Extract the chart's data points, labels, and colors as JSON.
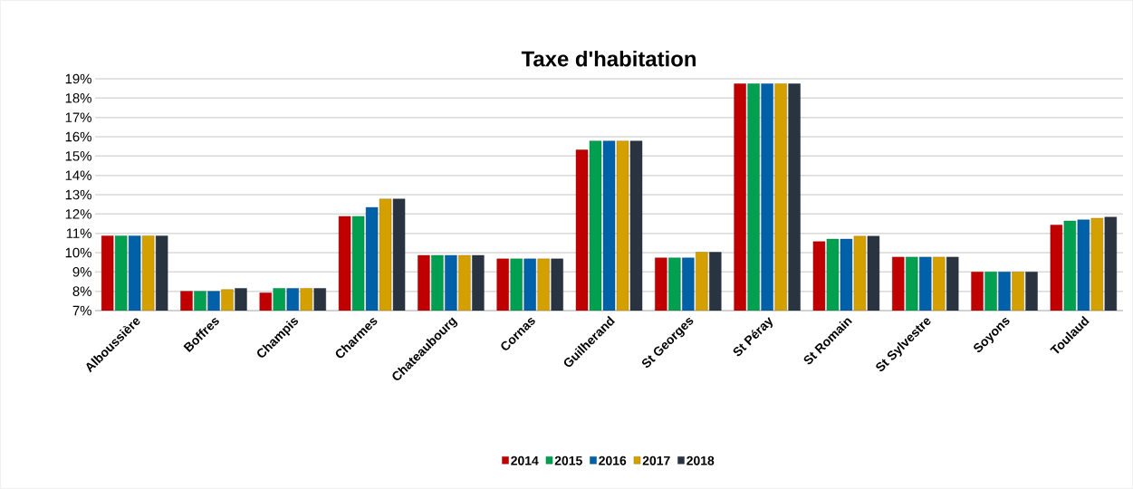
{
  "chart_data": {
    "type": "bar",
    "title": "Taxe d'habitation",
    "categories": [
      "Alboussière",
      "Boffres",
      "Champis",
      "Charmes",
      "Chateaubourg",
      "Cornas",
      "Guilherand",
      "St Georges",
      "St Péray",
      "St Romain",
      "St Sylvestre",
      "Soyons",
      "Toulaud"
    ],
    "series": [
      {
        "name": "2014",
        "color": "#c00000",
        "values": [
          10.87,
          8.0,
          7.92,
          11.88,
          9.86,
          9.68,
          15.32,
          9.73,
          18.74,
          10.57,
          9.77,
          9.0,
          11.43
        ]
      },
      {
        "name": "2015",
        "color": "#00a050",
        "values": [
          10.87,
          8.0,
          8.15,
          11.88,
          9.86,
          9.68,
          15.78,
          9.73,
          18.74,
          10.7,
          9.77,
          9.0,
          11.64
        ]
      },
      {
        "name": "2016",
        "color": "#0060a8",
        "values": [
          10.87,
          8.0,
          8.15,
          12.34,
          9.86,
          9.68,
          15.78,
          9.73,
          18.74,
          10.7,
          9.77,
          9.0,
          11.7
        ]
      },
      {
        "name": "2017",
        "color": "#d4a000",
        "values": [
          10.87,
          8.09,
          8.15,
          12.78,
          9.86,
          9.68,
          15.78,
          10.02,
          18.74,
          10.85,
          9.77,
          9.0,
          11.78
        ]
      },
      {
        "name": "2018",
        "color": "#2a3340",
        "values": [
          10.87,
          8.15,
          8.15,
          12.78,
          9.86,
          9.68,
          15.78,
          10.02,
          18.74,
          10.85,
          9.77,
          9.0,
          11.84
        ]
      }
    ],
    "ylim": [
      7,
      19
    ],
    "yticks": [
      {
        "value": 7,
        "label": "7%"
      },
      {
        "value": 8,
        "label": "8%"
      },
      {
        "value": 9,
        "label": "9%"
      },
      {
        "value": 10,
        "label": "10%"
      },
      {
        "value": 11,
        "label": "11%"
      },
      {
        "value": 12,
        "label": "12%"
      },
      {
        "value": 13,
        "label": "13%"
      },
      {
        "value": 14,
        "label": "14%"
      },
      {
        "value": 15,
        "label": "15%"
      },
      {
        "value": 16,
        "label": "16%"
      },
      {
        "value": 17,
        "label": "17%"
      },
      {
        "value": 18,
        "label": "18%"
      },
      {
        "value": 19,
        "label": "19%"
      }
    ],
    "grid": "y",
    "legend": "bottom"
  }
}
